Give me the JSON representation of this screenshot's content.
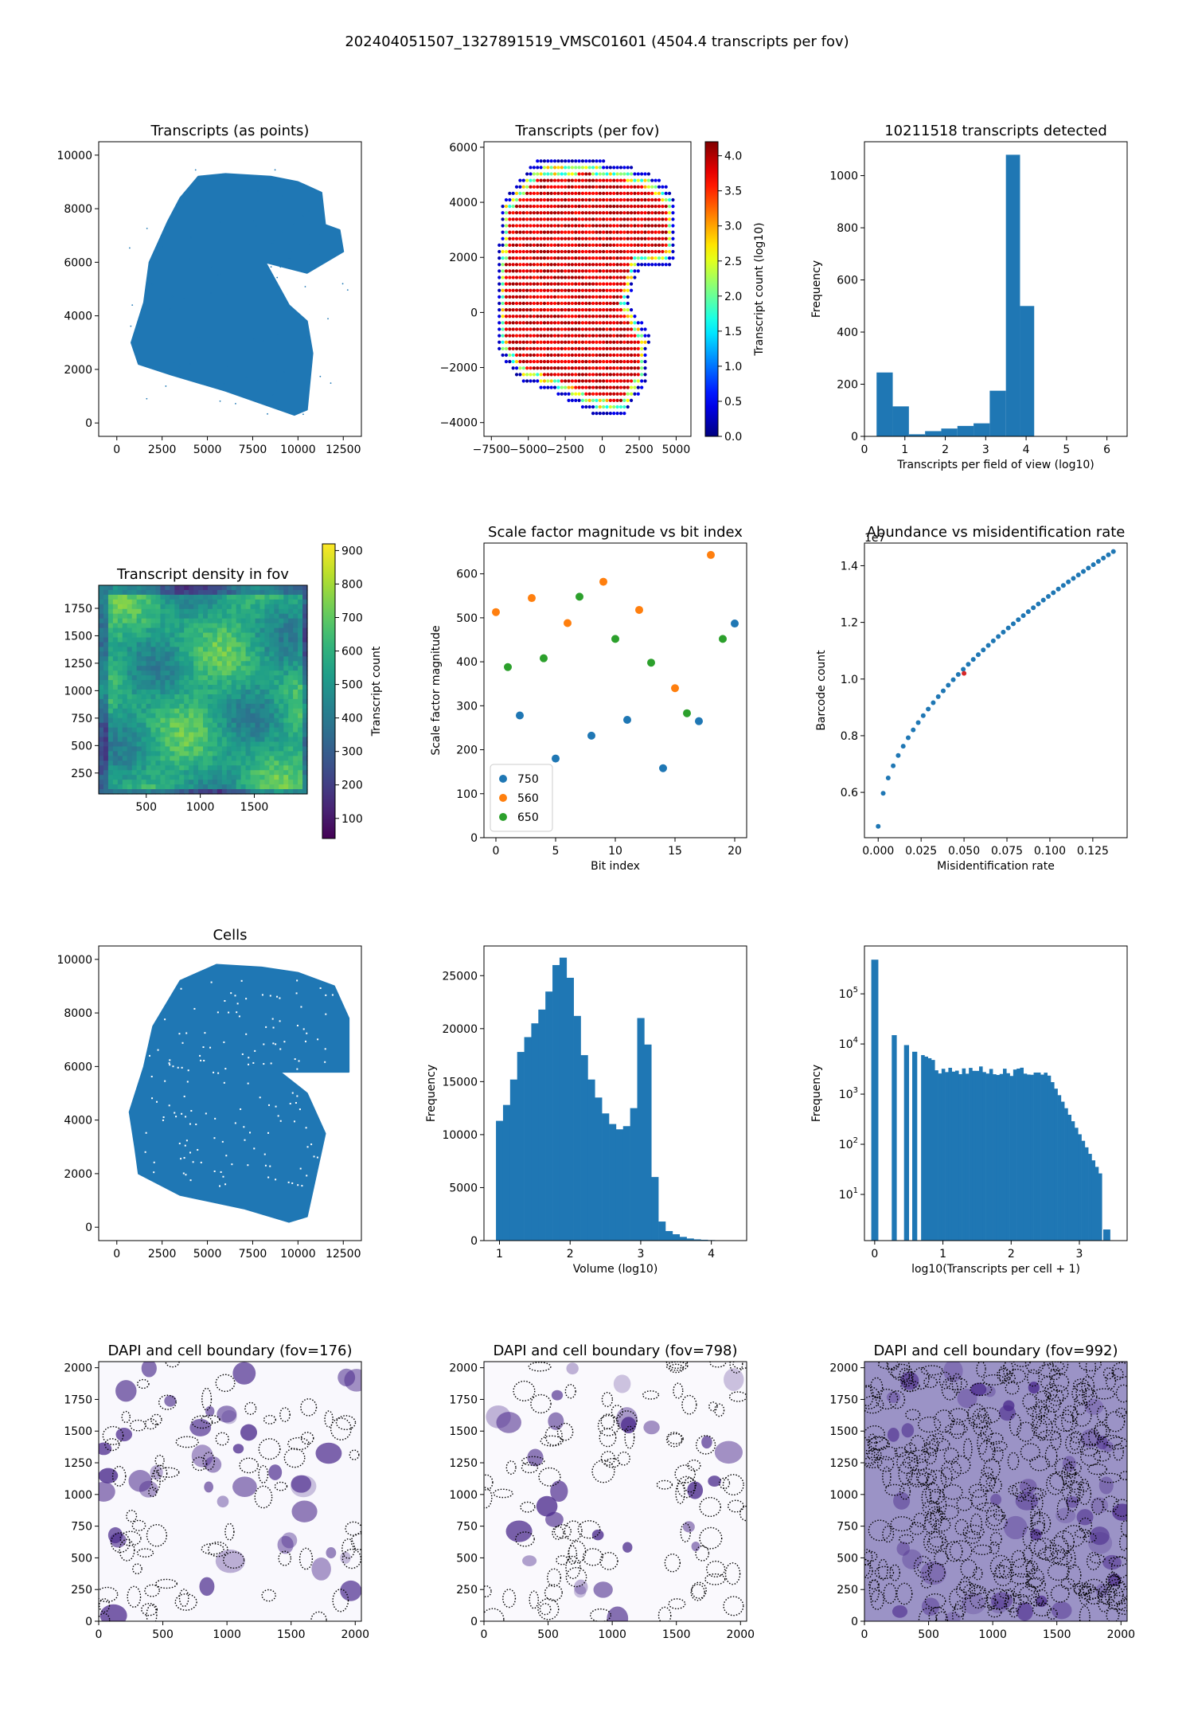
{
  "figure": {
    "title": "202404051507_1327891519_VMSC01601 (4504.4 transcripts per fov)"
  },
  "colors": {
    "blue": "#1f77b4",
    "orange": "#ff7f0e",
    "green": "#2ca02c",
    "red": "#d62728"
  },
  "chart_data": [
    {
      "id": "p1",
      "type": "scatter",
      "title": "Transcripts (as points)",
      "xlabel": "",
      "ylabel": "",
      "xlim": [
        -1000,
        13500
      ],
      "ylim": [
        -500,
        10500
      ],
      "xticks": [
        "0",
        "2500",
        "5000",
        "7500",
        "10000",
        "12500"
      ],
      "yticks": [
        "0",
        "2000",
        "4000",
        "6000",
        "8000",
        "10000"
      ],
      "region": [
        [
          1200,
          2200
        ],
        [
          3000,
          1800
        ],
        [
          6000,
          1200
        ],
        [
          9800,
          300
        ],
        [
          10500,
          500
        ],
        [
          10800,
          2600
        ],
        [
          10500,
          3800
        ],
        [
          9500,
          4400
        ],
        [
          8200,
          6000
        ],
        [
          10500,
          5600
        ],
        [
          12500,
          6400
        ],
        [
          12300,
          7200
        ],
        [
          11500,
          7400
        ],
        [
          11300,
          8600
        ],
        [
          10000,
          9000
        ],
        [
          8500,
          9200
        ],
        [
          6000,
          9300
        ],
        [
          4500,
          9200
        ],
        [
          3500,
          8400
        ],
        [
          2800,
          7500
        ],
        [
          1800,
          6000
        ],
        [
          1500,
          4500
        ],
        [
          800,
          3000
        ]
      ]
    },
    {
      "id": "p2",
      "type": "scatter",
      "title": "Transcripts (per fov)",
      "xlabel": "",
      "ylabel": "",
      "xlim": [
        -8000,
        6000
      ],
      "ylim": [
        -4500,
        6200
      ],
      "xticks": [
        "−7500",
        "−5000",
        "−2500",
        "0",
        "2500",
        "5000"
      ],
      "yticks": [
        "−4000",
        "−2000",
        "0",
        "2000",
        "4000",
        "6000"
      ],
      "colorbar": {
        "label": "Transcript count (log10)",
        "range": [
          0.0,
          4.2
        ],
        "ticks": [
          "0.0",
          "0.5",
          "1.0",
          "1.5",
          "2.0",
          "2.5",
          "3.0",
          "3.5",
          "4.0"
        ],
        "colormap": "jet"
      },
      "region": [
        [
          -6800,
          4000
        ],
        [
          -4500,
          5500
        ],
        [
          -1000,
          5600
        ],
        [
          1500,
          5400
        ],
        [
          3500,
          5000
        ],
        [
          5000,
          4200
        ],
        [
          5000,
          2000
        ],
        [
          4200,
          1500
        ],
        [
          2500,
          1600
        ],
        [
          1800,
          400
        ],
        [
          3200,
          -800
        ],
        [
          3000,
          -2500
        ],
        [
          1500,
          -3800
        ],
        [
          -500,
          -3700
        ],
        [
          -3000,
          -3000
        ],
        [
          -5500,
          -2500
        ],
        [
          -7000,
          -1500
        ],
        [
          -7200,
          500
        ]
      ]
    },
    {
      "id": "p3",
      "type": "bar",
      "title": "10211518 transcripts detected",
      "xlabel": "Transcripts per field of view (log10)",
      "ylabel": "Frequency",
      "xlim": [
        0,
        6.5
      ],
      "ylim": [
        0,
        1130
      ],
      "xticks": [
        "0",
        "1",
        "2",
        "3",
        "4",
        "5",
        "6"
      ],
      "yticks": [
        "0",
        "200",
        "400",
        "600",
        "800",
        "1000"
      ],
      "bin_edges": [
        0.3,
        0.7,
        1.1,
        1.5,
        1.9,
        2.3,
        2.7,
        3.1,
        3.5,
        3.85,
        4.2
      ],
      "values": [
        245,
        115,
        8,
        20,
        30,
        40,
        50,
        175,
        1080,
        500
      ]
    },
    {
      "id": "p4",
      "type": "heatmap",
      "title": "Transcript density in fov",
      "xlabel": "",
      "ylabel": "",
      "xlim": [
        60,
        1990
      ],
      "ylim": [
        60,
        1960
      ],
      "xticks": [
        "500",
        "1000",
        "1500"
      ],
      "yticks": [
        "250",
        "500",
        "750",
        "1000",
        "1250",
        "1500",
        "1750"
      ],
      "colorbar": {
        "label": "Transcript count",
        "range": [
          40,
          920
        ],
        "ticks": [
          "100",
          "200",
          "300",
          "400",
          "500",
          "600",
          "700",
          "800",
          "900"
        ],
        "colormap": "viridis"
      }
    },
    {
      "id": "p5",
      "type": "scatter",
      "title": "Scale factor magnitude vs bit index",
      "xlabel": "Bit index",
      "ylabel": "Scale factor magnitude",
      "xlim": [
        -1,
        21
      ],
      "ylim": [
        0,
        670
      ],
      "xticks": [
        "0",
        "5",
        "10",
        "15",
        "20"
      ],
      "yticks": [
        "0",
        "100",
        "200",
        "300",
        "400",
        "500",
        "600"
      ],
      "legend": "lower-left",
      "series": [
        {
          "name": "750",
          "x": [
            2,
            5,
            8,
            11,
            14,
            17,
            20
          ],
          "y": [
            278,
            180,
            232,
            268,
            158,
            265,
            487
          ]
        },
        {
          "name": "560",
          "x": [
            0,
            3,
            6,
            9,
            12,
            15,
            18
          ],
          "y": [
            513,
            545,
            488,
            582,
            518,
            340,
            643
          ]
        },
        {
          "name": "650",
          "x": [
            1,
            4,
            7,
            10,
            13,
            16,
            19
          ],
          "y": [
            388,
            408,
            548,
            452,
            398,
            283,
            452
          ]
        }
      ]
    },
    {
      "id": "p6",
      "type": "scatter",
      "title": "Abundance vs misidentification rate",
      "xlabel": "Misidentification rate",
      "ylabel": "Barcode count",
      "xlim": [
        -0.008,
        0.145
      ],
      "ylim": [
        0.44,
        1.48
      ],
      "xticks": [
        "0.000",
        "0.025",
        "0.050",
        "0.075",
        "0.100",
        "0.125"
      ],
      "yticks": [
        "0.6",
        "0.8",
        "1.0",
        "1.2",
        "1.4"
      ],
      "offset_label": "1e7",
      "curve": {
        "x_start": 0.0,
        "x_end": 0.137,
        "points": 48,
        "y_start": 0.48,
        "y_end": 1.45
      },
      "highlight": {
        "x": 0.05,
        "y": 1.02
      }
    },
    {
      "id": "p7",
      "type": "scatter",
      "title": "Cells",
      "xlabel": "",
      "ylabel": "",
      "xlim": [
        -1000,
        13500
      ],
      "ylim": [
        -500,
        10500
      ],
      "xticks": [
        "0",
        "2500",
        "5000",
        "7500",
        "10000",
        "12500"
      ],
      "yticks": [
        "0",
        "2000",
        "4000",
        "6000",
        "8000",
        "10000"
      ],
      "region": [
        [
          1000,
          3000
        ],
        [
          1200,
          2000
        ],
        [
          3500,
          1200
        ],
        [
          7000,
          700
        ],
        [
          9500,
          200
        ],
        [
          10500,
          400
        ],
        [
          11500,
          3500
        ],
        [
          10500,
          5000
        ],
        [
          9000,
          5800
        ],
        [
          12800,
          5800
        ],
        [
          12800,
          7800
        ],
        [
          12000,
          9000
        ],
        [
          10000,
          9500
        ],
        [
          8000,
          9700
        ],
        [
          5500,
          9800
        ],
        [
          3500,
          9200
        ],
        [
          2000,
          7500
        ],
        [
          1500,
          6000
        ],
        [
          700,
          4300
        ]
      ]
    },
    {
      "id": "p8",
      "type": "bar",
      "title": "",
      "xlabel": "Volume (log10)",
      "ylabel": "Frequency",
      "xlim": [
        0.78,
        4.5
      ],
      "ylim": [
        0,
        27800
      ],
      "xticks": [
        "1",
        "2",
        "3",
        "4"
      ],
      "yticks": [
        "0",
        "5000",
        "10000",
        "15000",
        "20000",
        "25000"
      ],
      "bin_edges": [
        0.95,
        1.05,
        1.15,
        1.25,
        1.35,
        1.45,
        1.55,
        1.65,
        1.75,
        1.85,
        1.95,
        2.05,
        2.15,
        2.25,
        2.35,
        2.45,
        2.55,
        2.65,
        2.75,
        2.85,
        2.95,
        3.05,
        3.15,
        3.25,
        3.35,
        3.45,
        3.55,
        3.65,
        3.75,
        3.85,
        3.95,
        4.05,
        4.15
      ],
      "values": [
        11300,
        12800,
        15200,
        17800,
        19200,
        20500,
        21800,
        23500,
        26000,
        26700,
        24800,
        21200,
        17500,
        15200,
        13500,
        12000,
        11000,
        10500,
        10800,
        12500,
        21000,
        18500,
        6000,
        1800,
        900,
        600,
        350,
        200,
        120,
        80,
        50,
        30
      ]
    },
    {
      "id": "p9",
      "type": "bar",
      "title": "",
      "xlabel": "log10(Transcripts per cell + 1)",
      "ylabel": "Frequency",
      "yscale": "log",
      "xlim": [
        -0.15,
        3.7
      ],
      "ylim": [
        1.2,
        900000
      ],
      "xticks": [
        "0",
        "1",
        "2",
        "3"
      ],
      "yticks": [
        "10^1",
        "10^2",
        "10^3",
        "10^4",
        "10^5"
      ],
      "values_note": "histogram of per-cell transcript counts"
    },
    {
      "id": "p10",
      "type": "heatmap",
      "title": "DAPI and cell boundary (fov=176)",
      "xlabel": "",
      "ylabel": "",
      "xlim": [
        0,
        2048
      ],
      "ylim": [
        0,
        2048
      ],
      "xticks": [
        "0",
        "500",
        "1000",
        "1500",
        "2000"
      ],
      "yticks": [
        "0",
        "250",
        "500",
        "750",
        "1000",
        "1250",
        "1500",
        "1750",
        "2000"
      ]
    },
    {
      "id": "p11",
      "type": "heatmap",
      "title": "DAPI and cell boundary (fov=798)",
      "xlabel": "",
      "ylabel": "",
      "xlim": [
        0,
        2048
      ],
      "ylim": [
        0,
        2048
      ],
      "xticks": [
        "0",
        "500",
        "1000",
        "1500",
        "2000"
      ],
      "yticks": [
        "0",
        "250",
        "500",
        "750",
        "1000",
        "1250",
        "1500",
        "1750",
        "2000"
      ]
    },
    {
      "id": "p12",
      "type": "heatmap",
      "title": "DAPI and cell boundary (fov=992)",
      "xlabel": "",
      "ylabel": "",
      "xlim": [
        0,
        2048
      ],
      "ylim": [
        0,
        2048
      ],
      "xticks": [
        "0",
        "500",
        "1000",
        "1500",
        "2000"
      ],
      "yticks": [
        "0",
        "250",
        "500",
        "750",
        "1000",
        "1250",
        "1500",
        "1750",
        "2000"
      ]
    }
  ]
}
